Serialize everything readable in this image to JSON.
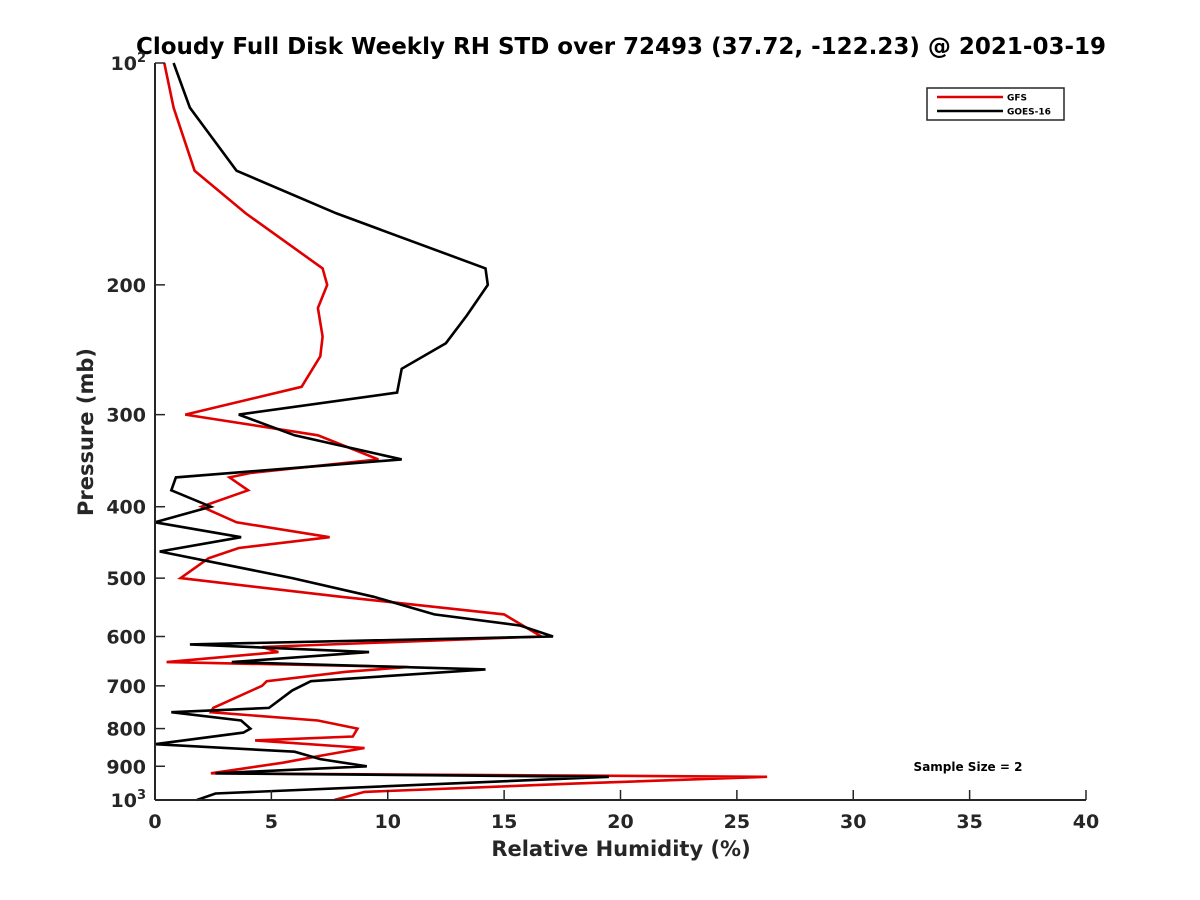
{
  "chart_data": {
    "type": "line",
    "title": "Cloudy Full Disk Weekly RH STD over 72493 (37.72, -122.23) @ 2021-03-19",
    "xlabel": "Relative Humidity (%)",
    "ylabel": "Pressure (mb)",
    "xlim": [
      0,
      40
    ],
    "ylim": [
      100,
      1000
    ],
    "yscale": "log",
    "y_reversed": true,
    "x_ticks": [
      0,
      5,
      10,
      15,
      20,
      25,
      30,
      35,
      40
    ],
    "x_tick_labels": [
      "0",
      "5",
      "10",
      "15",
      "20",
      "25",
      "30",
      "35",
      "40"
    ],
    "y_ticks": [
      100,
      200,
      300,
      400,
      500,
      600,
      700,
      800,
      900,
      1000
    ],
    "y_tick_labels": [
      {
        "base": "10",
        "exp": "2"
      },
      {
        "base": "200",
        "exp": ""
      },
      {
        "base": "300",
        "exp": ""
      },
      {
        "base": "400",
        "exp": ""
      },
      {
        "base": "500",
        "exp": ""
      },
      {
        "base": "600",
        "exp": ""
      },
      {
        "base": "700",
        "exp": ""
      },
      {
        "base": "800",
        "exp": ""
      },
      {
        "base": "900",
        "exp": ""
      },
      {
        "base": "10",
        "exp": "3"
      }
    ],
    "grid": false,
    "legend_position": "top-right",
    "annotation": "Sample Size = 2",
    "series": [
      {
        "name": "GFS",
        "color": "#e00000",
        "x": [
          0.4,
          0.8,
          1.7,
          3.9,
          7.2,
          7.4,
          7.0,
          7.2,
          7.1,
          6.3,
          1.3,
          7.0,
          9.6,
          4.1,
          3.2,
          4.0,
          2.0,
          3.5,
          7.5,
          3.6,
          2.3,
          1.1,
          8.0,
          15.0,
          16.6,
          4.6,
          5.3,
          0.5,
          10.9,
          8.2,
          4.8,
          4.6,
          2.5,
          2.4,
          7.0,
          8.7,
          8.5,
          4.3,
          9.0,
          7.2,
          5.5,
          2.4,
          26.3,
          18.0,
          9.0,
          7.7
        ],
        "y": [
          100,
          115,
          140,
          160,
          190,
          200,
          215,
          235,
          250,
          275,
          300,
          320,
          345,
          360,
          365,
          380,
          400,
          420,
          440,
          455,
          470,
          500,
          530,
          560,
          600,
          620,
          630,
          650,
          660,
          670,
          690,
          700,
          750,
          760,
          780,
          800,
          820,
          830,
          850,
          870,
          890,
          920,
          930,
          950,
          975,
          1000
        ]
      },
      {
        "name": "GOES-16",
        "color": "#000000",
        "x": [
          0.8,
          1.5,
          3.5,
          7.8,
          14.2,
          14.3,
          13.4,
          12.5,
          10.6,
          10.4,
          3.6,
          6.0,
          10.6,
          0.9,
          0.7,
          2.4,
          0.0,
          3.7,
          0.2,
          5.9,
          9.4,
          12.0,
          15.7,
          17.1,
          1.5,
          9.2,
          3.3,
          14.2,
          6.7,
          5.9,
          4.9,
          0.7,
          3.7,
          4.1,
          3.8,
          0.0,
          6.0,
          7.1,
          9.1,
          2.6,
          19.5,
          2.6,
          1.8
        ],
        "y": [
          100,
          115,
          140,
          160,
          190,
          200,
          220,
          240,
          260,
          280,
          300,
          320,
          345,
          365,
          380,
          400,
          420,
          440,
          460,
          500,
          530,
          560,
          580,
          600,
          615,
          630,
          650,
          665,
          690,
          710,
          750,
          760,
          780,
          800,
          810,
          840,
          860,
          880,
          900,
          920,
          930,
          980,
          1000
        ]
      }
    ]
  }
}
